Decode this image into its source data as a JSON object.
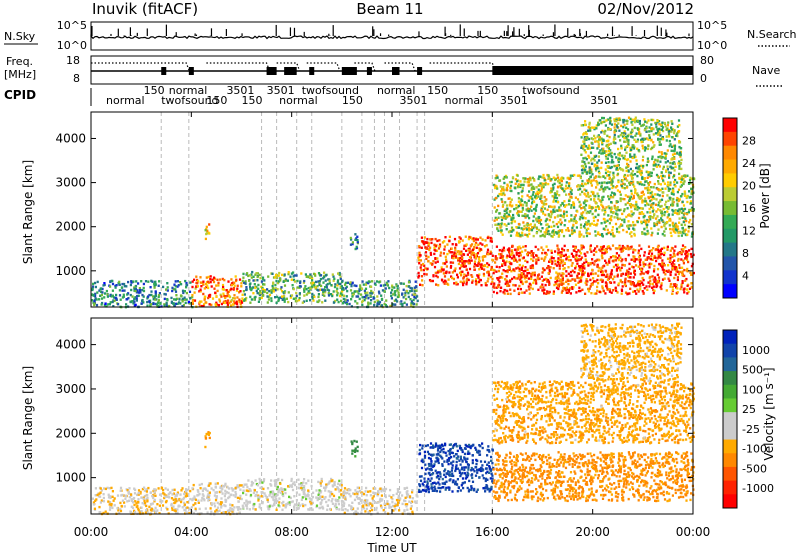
{
  "header": {
    "station": "Inuvik (fitACF)",
    "beam": "Beam 11",
    "date": "02/Nov/2012"
  },
  "params": {
    "nsky_label": "N.Sky",
    "nsearch_label": "N.Search",
    "freq_label_1": "Freq.",
    "freq_label_2": "[MHz]",
    "nave_label": "Nave",
    "cpid_label": "CPID",
    "nsky_ticks": [
      "10^5",
      "10^0"
    ],
    "nsearch_ticks": [
      "10^5",
      "10^0"
    ],
    "freq_ticks": [
      "18",
      "8"
    ],
    "nave_ticks": [
      "80",
      "0"
    ],
    "cpid_labels": [
      {
        "t": 0.6,
        "text": "normal"
      },
      {
        "t": 2.1,
        "text": "150"
      },
      {
        "t": 2.8,
        "text": "twofsound"
      },
      {
        "t": 3.1,
        "text": "normal"
      },
      {
        "t": 4.6,
        "text": "150"
      },
      {
        "t": 5.4,
        "text": "3501"
      },
      {
        "t": 6.0,
        "text": "150"
      },
      {
        "t": 7.0,
        "text": "3501"
      },
      {
        "t": 7.5,
        "text": "normal"
      },
      {
        "t": 8.4,
        "text": "twofsound"
      },
      {
        "t": 10.0,
        "text": "150"
      },
      {
        "t": 11.4,
        "text": "normal"
      },
      {
        "t": 12.3,
        "text": "3501"
      },
      {
        "t": 13.4,
        "text": "150"
      },
      {
        "t": 14.1,
        "text": "normal"
      },
      {
        "t": 15.4,
        "text": "150"
      },
      {
        "t": 16.3,
        "text": "3501"
      },
      {
        "t": 17.2,
        "text": "twofsound"
      },
      {
        "t": 19.9,
        "text": "3501"
      }
    ]
  },
  "colorbars": {
    "power": {
      "label": "Power [dB]",
      "ticks": [
        "28",
        "24",
        "20",
        "16",
        "12",
        "8",
        "4"
      ],
      "colors": [
        "#ff0000",
        "#ff4400",
        "#ff8800",
        "#ffaa00",
        "#ffcc00",
        "#bbcc33",
        "#77bb33",
        "#33aa55",
        "#229966",
        "#227788",
        "#2255aa",
        "#1133cc",
        "#0000ff"
      ]
    },
    "velocity": {
      "label": "Velocity [m s⁻¹]",
      "ticks": [
        "1000",
        "500",
        "100",
        "25",
        "-25",
        "-100",
        "-500",
        "-1000"
      ],
      "colors": [
        "#0022bb",
        "#1144aa",
        "#226699",
        "#338844",
        "#44aa33",
        "#66cc33",
        "#cccccc",
        "#cccccc",
        "#ffaa00",
        "#ff8800",
        "#ff5500",
        "#ff2200",
        "#ff0000"
      ]
    }
  },
  "axes": {
    "ylabel": "Slant Range [km]",
    "xlabel": "Time UT",
    "yticks": [
      "1000",
      "2000",
      "3000",
      "4000"
    ],
    "xticks": [
      "00:00",
      "04:00",
      "08:00",
      "12:00",
      "16:00",
      "20:00",
      "00:00"
    ]
  },
  "chart_data": {
    "type": "heatmap",
    "title": "Inuvik (fitACF)  Beam 11  02/Nov/2012",
    "xlabel": "Time UT",
    "ylabel": "Slant Range [km]",
    "xlim_hours": [
      0,
      24
    ],
    "ylim_km": [
      180,
      4600
    ],
    "scatter_regions": [
      {
        "t0": 0.0,
        "t1": 4.0,
        "r0": 200,
        "r1": 800,
        "power": 10,
        "velocity": -60
      },
      {
        "t0": 4.0,
        "t1": 6.0,
        "r0": 200,
        "r1": 900,
        "power": 26,
        "velocity": -40
      },
      {
        "t0": 6.0,
        "t1": 10.0,
        "r0": 300,
        "r1": 1000,
        "power": 14,
        "velocity": -30
      },
      {
        "t0": 10.0,
        "t1": 13.0,
        "r0": 200,
        "r1": 800,
        "power": 12,
        "velocity": -50
      },
      {
        "t0": 10.3,
        "t1": 10.6,
        "r0": 1500,
        "r1": 1900,
        "power": 10,
        "velocity": 120
      },
      {
        "t0": 4.5,
        "t1": 4.7,
        "r0": 1700,
        "r1": 2100,
        "power": 20,
        "velocity": -120
      },
      {
        "t0": 13.0,
        "t1": 16.0,
        "r0": 700,
        "r1": 1800,
        "power": 28,
        "velocity": 600
      },
      {
        "t0": 16.0,
        "t1": 24.0,
        "r0": 500,
        "r1": 1600,
        "power": 28,
        "velocity": -200
      },
      {
        "t0": 16.0,
        "t1": 24.0,
        "r0": 1800,
        "r1": 3200,
        "power": 18,
        "velocity": -120
      },
      {
        "t0": 19.5,
        "t1": 23.5,
        "r0": 3200,
        "r1": 4500,
        "power": 16,
        "velocity": -100
      }
    ]
  }
}
